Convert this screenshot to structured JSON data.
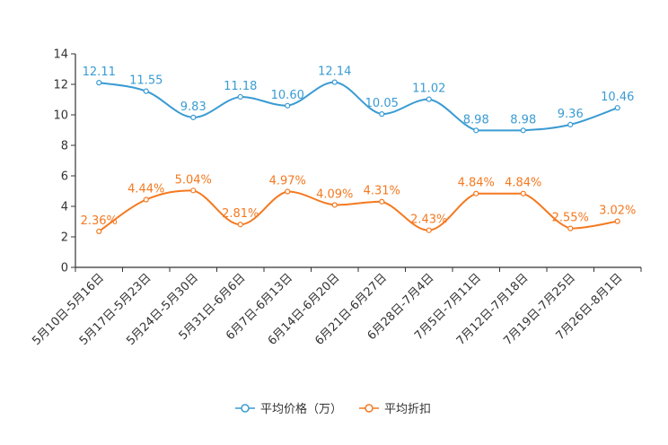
{
  "chart_data": {
    "type": "line",
    "categories": [
      "5月10日-5月16日",
      "5月17日-5月23日",
      "5月24日-5月30日",
      "5月31日-6月6日",
      "6月7日-6月13日",
      "6月14日-6月20日",
      "6月21日-6月27日",
      "6月28日-7月4日",
      "7月5日-7月11日",
      "7月12日-7月18日",
      "7月19日-7月25日",
      "7月26日-8月1日"
    ],
    "ylim": [
      0,
      14
    ],
    "yticks": [
      0,
      2,
      4,
      6,
      8,
      10,
      12,
      14
    ],
    "series": [
      {
        "name": "平均价格（万）",
        "color": "#3a9bd3",
        "values": [
          12.11,
          11.55,
          9.83,
          11.18,
          10.6,
          12.14,
          10.05,
          11.02,
          8.98,
          8.98,
          9.36,
          10.46
        ],
        "labels": [
          "12.11",
          "11.55",
          "9.83",
          "11.18",
          "10.60",
          "12.14",
          "10.05",
          "11.02",
          "8.98",
          "8.98",
          "9.36",
          "10.46"
        ]
      },
      {
        "name": "平均折扣",
        "color": "#f47920",
        "values": [
          2.36,
          4.44,
          5.04,
          2.81,
          4.97,
          4.09,
          4.31,
          2.43,
          4.84,
          4.84,
          2.55,
          3.02
        ],
        "labels": [
          "2.36%",
          "4.44%",
          "5.04%",
          "2.81%",
          "4.97%",
          "4.09%",
          "4.31%",
          "2.43%",
          "4.84%",
          "4.84%",
          "2.55%",
          "3.02%"
        ]
      }
    ],
    "smooth": true,
    "legend_position": "bottom-center"
  }
}
